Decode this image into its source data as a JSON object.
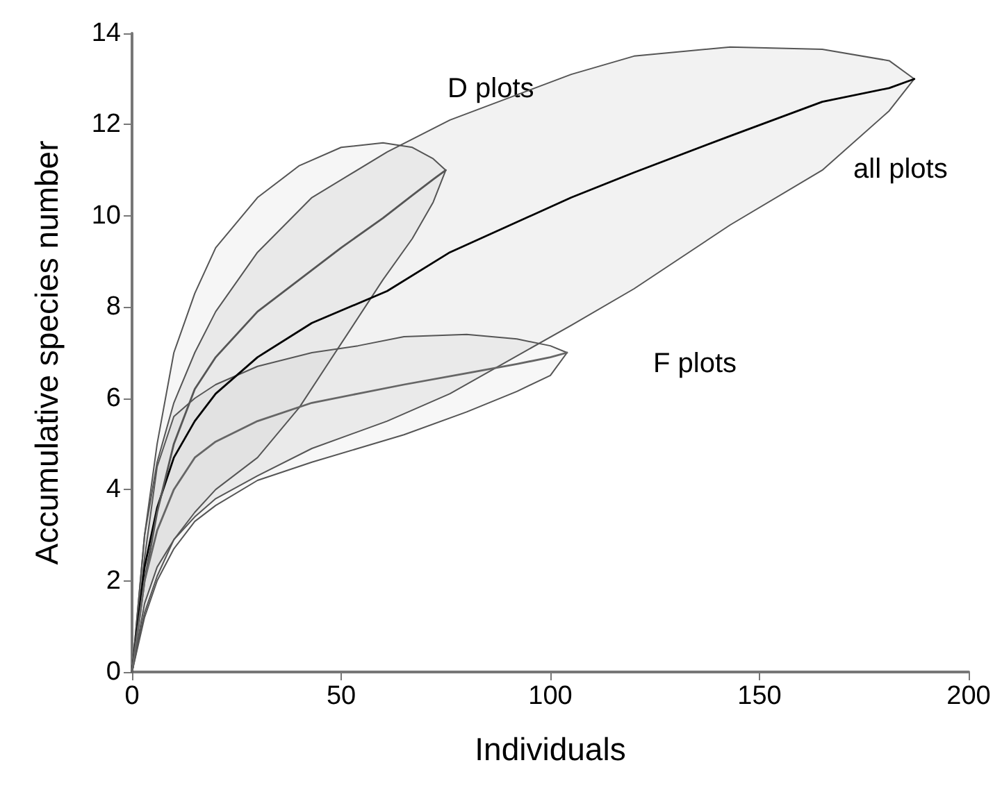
{
  "chart_data": {
    "type": "line",
    "xlabel": "Individuals",
    "ylabel": "Accumulative species number",
    "xlim": [
      0,
      200
    ],
    "xticks": [
      0,
      50,
      100,
      150,
      200
    ],
    "ylim": [
      0,
      14
    ],
    "yticks": [
      0,
      2,
      4,
      6,
      8,
      10,
      12,
      14
    ],
    "series": [
      {
        "color": "#000000",
        "x": [
          0,
          3,
          6,
          10,
          15,
          20,
          30,
          43,
          61,
          76,
          105,
          120,
          143,
          165,
          181,
          187
        ],
        "values": [
          0,
          2.3,
          3.6,
          4.7,
          5.5,
          6.1,
          6.9,
          7.65,
          8.35,
          9.2,
          10.4,
          10.95,
          11.75,
          12.5,
          12.8,
          13
        ],
        "upper": [
          0,
          3,
          4.6,
          5.9,
          7,
          7.9,
          9.2,
          10.4,
          11.4,
          12.1,
          13.1,
          13.5,
          13.7,
          13.65,
          13.4,
          13
        ],
        "lower": [
          0,
          1.5,
          2.3,
          2.9,
          3.4,
          3.8,
          4.3,
          4.9,
          5.5,
          6.1,
          7.6,
          8.4,
          9.8,
          11,
          12.3,
          13
        ]
      },
      {
        "color": "#555555",
        "x": [
          0,
          3,
          6,
          10,
          15,
          20,
          30,
          40,
          50,
          60,
          67,
          72,
          75
        ],
        "values": [
          0,
          2,
          3.5,
          5,
          6.2,
          6.9,
          7.9,
          8.6,
          9.3,
          9.95,
          10.45,
          10.8,
          11
        ],
        "upper": [
          0,
          3,
          5,
          7,
          8.3,
          9.3,
          10.4,
          11.1,
          11.5,
          11.6,
          11.5,
          11.25,
          11
        ],
        "lower": [
          0,
          1.3,
          2.1,
          2.9,
          3.5,
          4,
          4.7,
          5.8,
          7.2,
          8.6,
          9.5,
          10.3,
          11
        ]
      },
      {
        "color": "#666666",
        "x": [
          0,
          3,
          6,
          10,
          15,
          20,
          30,
          43,
          54,
          65,
          80,
          92,
          100,
          104
        ],
        "values": [
          0,
          2,
          3.1,
          4,
          4.7,
          5.05,
          5.5,
          5.9,
          6.1,
          6.3,
          6.55,
          6.75,
          6.9,
          7
        ],
        "upper": [
          0,
          2.5,
          4.5,
          5.6,
          6,
          6.3,
          6.7,
          7,
          7.15,
          7.35,
          7.4,
          7.3,
          7.15,
          7
        ],
        "lower": [
          0,
          1.2,
          2,
          2.7,
          3.3,
          3.65,
          4.2,
          4.6,
          4.9,
          5.2,
          5.7,
          6.15,
          6.5,
          7
        ]
      }
    ],
    "annotations": [
      "D plots",
      "all plots",
      "F plots"
    ]
  }
}
